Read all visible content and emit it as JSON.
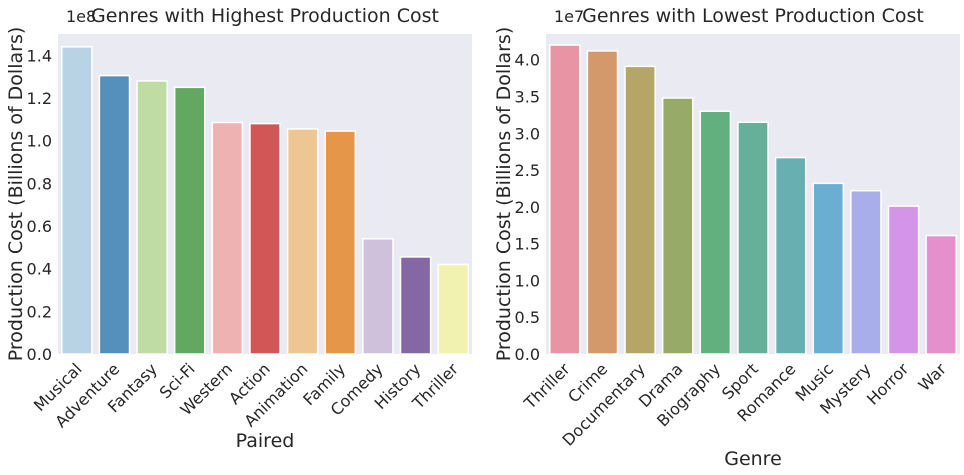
{
  "chart_data": [
    {
      "type": "bar",
      "title": "Genres with Highest Production Cost",
      "xlabel": "Paired",
      "ylabel": "Production Cost (Billions of Dollars)",
      "y_offset_label": "1e8",
      "ylim": [
        0,
        150000000
      ],
      "yticks": [
        0,
        20000000,
        40000000,
        60000000,
        80000000,
        100000000,
        120000000,
        140000000
      ],
      "ytick_labels": [
        "0.0",
        "0.2",
        "0.4",
        "0.6",
        "0.8",
        "1.0",
        "1.2",
        "1.4"
      ],
      "grid": false,
      "palette": "Paired",
      "categories": [
        "Musical",
        "Adventure",
        "Fantasy",
        "Sci-Fi",
        "Western",
        "Action",
        "Animation",
        "Family",
        "Comedy",
        "History",
        "Thriller"
      ],
      "values": [
        144000000,
        130500000,
        128000000,
        125000000,
        108500000,
        108000000,
        105500000,
        104500000,
        54000000,
        45500000,
        42000000
      ],
      "colors": [
        "#b8d3e4",
        "#558fbb",
        "#c0dca5",
        "#63a861",
        "#efb2b3",
        "#d35657",
        "#edc694",
        "#e59648",
        "#cfc0db",
        "#8468a4",
        "#f2f2b0"
      ]
    },
    {
      "type": "bar",
      "title": "Genres with Lowest Production Cost",
      "xlabel": "Genre",
      "ylabel": "Production Cost (Billions of Dollars)",
      "y_offset_label": "1e7",
      "ylim": [
        0,
        43500000
      ],
      "yticks": [
        0,
        5000000,
        10000000,
        15000000,
        20000000,
        25000000,
        30000000,
        35000000,
        40000000
      ],
      "ytick_labels": [
        "0.0",
        "0.5",
        "1.0",
        "1.5",
        "2.0",
        "2.5",
        "3.0",
        "3.5",
        "4.0"
      ],
      "grid": false,
      "categories": [
        "Thriller",
        "Crime",
        "Documentary",
        "Drama",
        "Biography",
        "Sport",
        "Romance",
        "Music",
        "Mystery",
        "Horror",
        "War"
      ],
      "values": [
        42000000,
        41200000,
        39100000,
        34800000,
        33000000,
        31500000,
        26700000,
        23200000,
        22200000,
        20100000,
        16100000
      ],
      "colors": [
        "#e894a5",
        "#d3996a",
        "#b5a566",
        "#97aa68",
        "#63b07f",
        "#66b09a",
        "#68afb1",
        "#6aafd2",
        "#a8aeea",
        "#d495e8",
        "#e68fcd"
      ]
    }
  ]
}
